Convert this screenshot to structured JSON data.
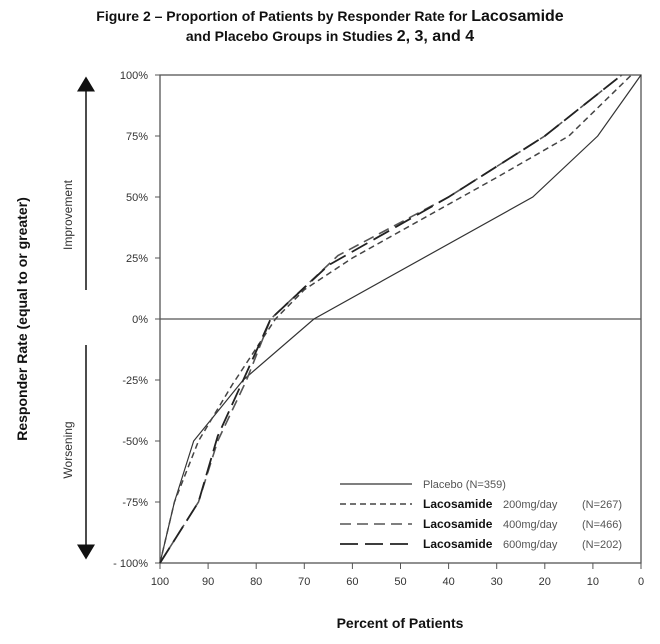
{
  "title_line1_a": "Figure 2 – Proportion of Patients by Responder Rate for ",
  "title_line1_b": "Lacosamide",
  "title_line2_a": "and Placebo Groups in Studies ",
  "title_line2_b": "2, 3, and 4",
  "chart_data": {
    "type": "line",
    "title": "Figure 2 – Proportion of Patients by Responder Rate for Lacosamide and Placebo Groups in Studies 2, 3, and 4",
    "xlabel": "Percent of Patients",
    "ylabel": "Responder Rate (equal to or greater)",
    "xlim": [
      100,
      0
    ],
    "ylim": [
      -100,
      100
    ],
    "x_ticks": [
      "100",
      "90",
      "80",
      "70",
      "60",
      "50",
      "40",
      "30",
      "20",
      "10",
      "0"
    ],
    "y_ticks": [
      "100%",
      "75%",
      "50%",
      "25%",
      "0%",
      "-25%",
      "-50%",
      "-75%",
      "- 100%"
    ],
    "annotations": {
      "up": "Improvement",
      "down": "Worsening"
    },
    "legend_position": "bottom-right",
    "series": [
      {
        "name": "Placebo (N=359)",
        "drug": "",
        "dose": "Placebo",
        "n": "(N=359)",
        "style": "solid",
        "color": "#333333",
        "points": [
          [
            100,
            -100
          ],
          [
            97,
            -75
          ],
          [
            93,
            -50
          ],
          [
            82.7,
            -25
          ],
          [
            68,
            0
          ],
          [
            22.5,
            50
          ],
          [
            9,
            75
          ],
          [
            0,
            100
          ]
        ]
      },
      {
        "name": "Lacosamide 200mg/day (N=267)",
        "drug": "Lacosamide",
        "dose": "200mg/day",
        "n": "(N=267)",
        "style": "short-dash",
        "color": "#444444",
        "points": [
          [
            100,
            -100
          ],
          [
            97,
            -75
          ],
          [
            92,
            -50
          ],
          [
            85,
            -27
          ],
          [
            76,
            0
          ],
          [
            70,
            12
          ],
          [
            60,
            25
          ],
          [
            30,
            58
          ],
          [
            15,
            75
          ],
          [
            2,
            100
          ]
        ]
      },
      {
        "name": "Lacosamide 400mg/day (N=466)",
        "drug": "Lacosamide",
        "dose": "400mg/day",
        "n": "(N=466)",
        "style": "medium-dash",
        "color": "#555555",
        "points": [
          [
            100,
            -100
          ],
          [
            92,
            -75
          ],
          [
            88,
            -50
          ],
          [
            82,
            -25
          ],
          [
            77,
            0
          ],
          [
            63,
            26
          ],
          [
            40,
            50
          ],
          [
            20,
            75
          ],
          [
            4,
            100
          ]
        ]
      },
      {
        "name": "Lacosamide 600mg/day (N=202)",
        "drug": "Lacosamide",
        "dose": "600mg/day",
        "n": "(N=202)",
        "style": "long-dash",
        "color": "#222222",
        "points": [
          [
            100,
            -100
          ],
          [
            92,
            -75
          ],
          [
            88,
            -48
          ],
          [
            82,
            -22
          ],
          [
            77,
            0
          ],
          [
            65,
            22
          ],
          [
            40,
            50
          ],
          [
            20,
            75
          ],
          [
            4,
            100
          ]
        ]
      }
    ]
  }
}
